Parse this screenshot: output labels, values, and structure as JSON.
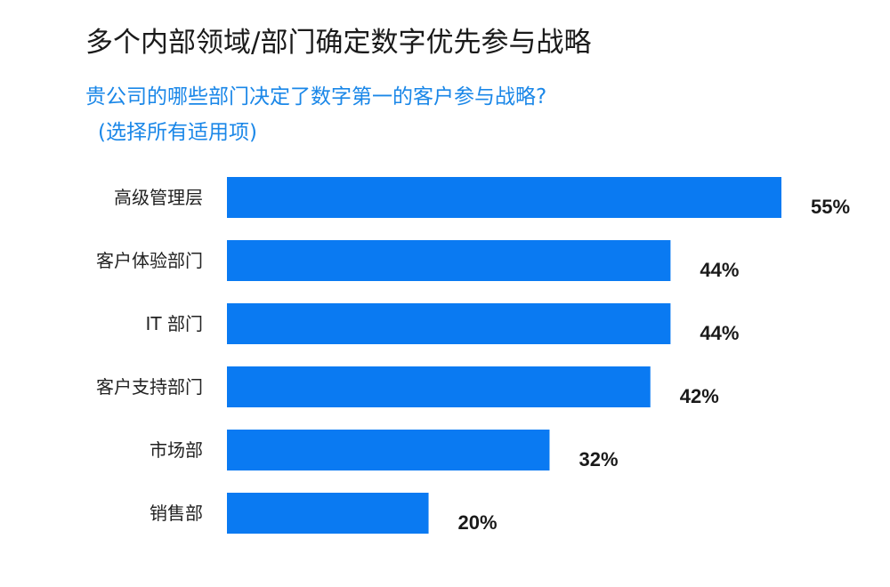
{
  "header": {
    "title": "多个内部领域/部门确定数字优先参与战略",
    "subtitle": "贵公司的哪些部门决定了数字第一的客户参与战略?",
    "note": "(选择所有适用项)"
  },
  "colors": {
    "bar": "#0a7af2",
    "subtitle": "#1a87e8"
  },
  "chart_data": {
    "type": "bar",
    "orientation": "horizontal",
    "categories": [
      "高级管理层",
      "客户体验部门",
      "IT 部门",
      "客户支持部门",
      "市场部",
      "销售部"
    ],
    "values": [
      55,
      44,
      44,
      42,
      32,
      20
    ],
    "value_labels": [
      "55%",
      "44%",
      "44%",
      "42%",
      "32%",
      "20%"
    ],
    "unit": "%",
    "xlim": [
      0,
      55
    ],
    "grid": false,
    "legend": "none"
  }
}
